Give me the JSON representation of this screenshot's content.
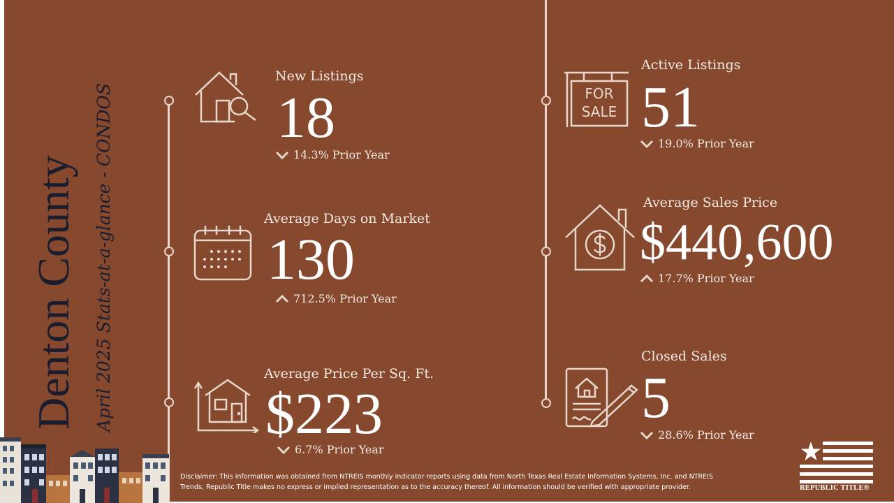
{
  "title": {
    "county": "Denton County",
    "subtitle": "April 2025 Stats-at-a-glance - CONDOS"
  },
  "colors": {
    "background": "#86492e",
    "text": "#f3e9e2",
    "title": "#1b1c2e"
  },
  "stats": {
    "new_listings": {
      "label": "New Listings",
      "value": "18",
      "change": "14.3% Prior Year",
      "direction": "down",
      "icon": "house-search-icon"
    },
    "avg_days": {
      "label": "Average Days on Market",
      "value": "130",
      "change": "712.5% Prior Year",
      "direction": "up",
      "icon": "calendar-icon"
    },
    "avg_price_sqft": {
      "label": "Average Price Per Sq. Ft.",
      "value": "$223",
      "change": "6.7% Prior Year",
      "direction": "down",
      "icon": "house-chart-icon"
    },
    "active_listings": {
      "label": "Active Listings",
      "value": "51",
      "change": "19.0% Prior Year",
      "direction": "down",
      "icon": "for-sale-sign-icon"
    },
    "avg_sales_price": {
      "label": "Average Sales Price",
      "value": "$440,600",
      "change": "17.7% Prior Year",
      "direction": "up",
      "icon": "house-dollar-icon"
    },
    "closed_sales": {
      "label": "Closed Sales",
      "value": "5",
      "change": "28.6% Prior Year",
      "direction": "down",
      "icon": "contract-signature-icon"
    }
  },
  "sign_text": {
    "line1": "FOR",
    "line2": "SALE"
  },
  "disclaimer": "Disclaimer: This information was obtained from NTREIS monthly indicator reports using data from North Texas Real Estate Information Systems, Inc. and NTREIS Trends, Republic Title makes no express or implied representation as to the accuracy thereof. All information should be verified with appropriate provider.",
  "logo": {
    "text": "REPUBLIC TITLE®"
  }
}
